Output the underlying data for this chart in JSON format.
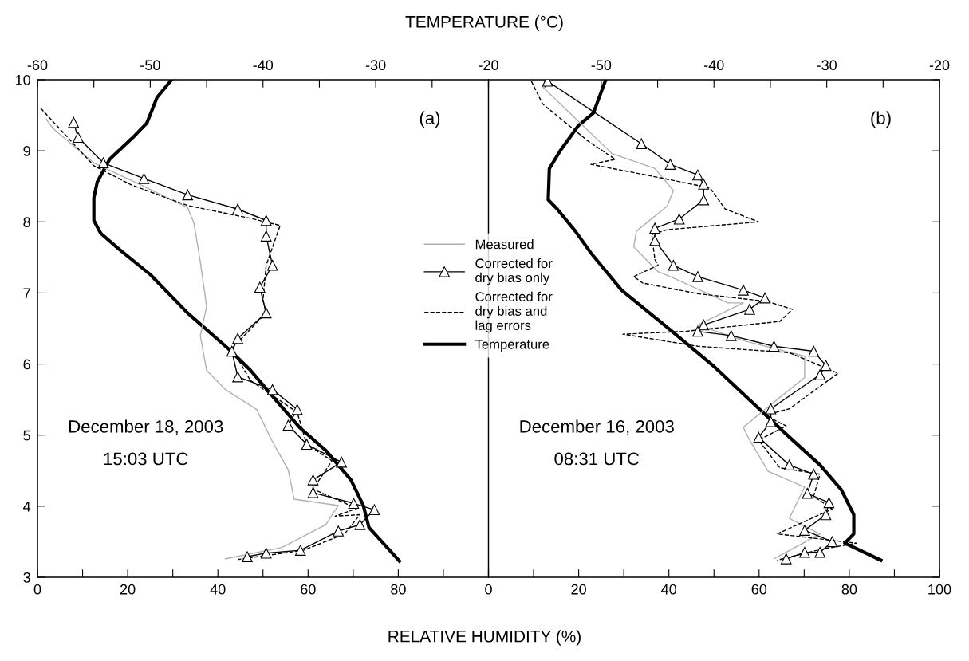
{
  "chart_data": [
    {
      "type": "line",
      "xlabel": "RELATIVE HUMIDITY (%)",
      "x2label": "TEMPERATURE (°C)",
      "legend": "center",
      "grid": false,
      "annotations": [
        "(a)",
        "December 18, 2003",
        "15:03 UTC"
      ],
      "xlim": [
        0,
        100
      ],
      "xticks": [
        0,
        {
          "value": 10,
          "label": null
        },
        20,
        {
          "value": 30,
          "label": null
        },
        40,
        {
          "value": 50,
          "label": null
        },
        60,
        {
          "value": 70,
          "label": null
        },
        80,
        {
          "value": 90,
          "label": null
        },
        {
          "value": 100,
          "label": null
        }
      ],
      "x2lim": [
        -60,
        -20
      ],
      "x2ticks": [
        -60,
        {
          "value": -55,
          "label": null
        },
        -50,
        {
          "value": -45,
          "label": null
        },
        -40,
        {
          "value": -35,
          "label": null
        },
        -30,
        {
          "value": -25,
          "label": null
        },
        -20
      ],
      "ylim": [
        3,
        10
      ],
      "yticks": [
        3,
        4,
        5,
        6,
        7,
        8,
        9,
        10
      ],
      "series": [
        {
          "name": "Measured",
          "color": "#b0b0b0",
          "marker": "none",
          "line_style": "solid",
          "x": [
            2.0,
            3.5,
            12.5,
            22.9,
            33.3,
            34.7,
            36.1,
            37.5,
            36.1,
            37.5,
            41.7,
            48.6,
            52.1,
            55.6,
            56.9,
            66.7,
            63.9,
            54.2,
            41.7
          ],
          "values": [
            9.44,
            9.31,
            8.83,
            8.52,
            8.2,
            7.98,
            7.44,
            6.81,
            6.4,
            5.91,
            5.64,
            5.36,
            4.91,
            4.51,
            4.1,
            4.01,
            3.74,
            3.42,
            3.26
          ]
        },
        {
          "name": "Corrected for\ndry bias only",
          "color": "#000000",
          "marker": "triangle",
          "line_style": "solid",
          "x": [
            8.0,
            9.0,
            14.6,
            23.6,
            33.3,
            44.4,
            50.7,
            50.7,
            52.1,
            49.3,
            50.7,
            44.4,
            43.1,
            44.4,
            52.1,
            57.6,
            55.6,
            59.7,
            67.4,
            61.1,
            61.1,
            70.1,
            74.7,
            71.5,
            66.7,
            58.3,
            50.7,
            46.5
          ],
          "values": [
            9.4,
            9.19,
            8.83,
            8.61,
            8.38,
            8.18,
            8.02,
            7.8,
            7.39,
            7.08,
            6.72,
            6.36,
            6.18,
            5.82,
            5.64,
            5.36,
            5.14,
            4.87,
            4.62,
            4.37,
            4.19,
            4.04,
            3.95,
            3.74,
            3.65,
            3.38,
            3.34,
            3.29
          ]
        },
        {
          "name": "Corrected for\ndry bias and\nlag errors",
          "color": "#000000",
          "marker": "none",
          "line_style": "dashed",
          "x": [
            0.7,
            12.5,
            20.8,
            33.3,
            47.2,
            53.8,
            50.7,
            50.0,
            50.7,
            43.1,
            47.2,
            57.6,
            59.7,
            65.3,
            61.1,
            70.8,
            66.0,
            71.5,
            68.1,
            59.0,
            44.4
          ],
          "values": [
            9.6,
            8.79,
            8.52,
            8.23,
            8.05,
            7.95,
            7.39,
            6.9,
            6.72,
            6.22,
            5.77,
            5.32,
            4.87,
            4.64,
            4.24,
            3.97,
            3.86,
            3.88,
            3.61,
            3.38,
            3.25
          ]
        },
        {
          "name": "Temperature",
          "color": "#000000",
          "marker": "none",
          "line_style": "solid",
          "axis": "x2",
          "x": [
            -48.1,
            -49.4,
            -50.3,
            -51.4,
            -53.6,
            -54.7,
            -55.0,
            -55.0,
            -54.4,
            -52.8,
            -50.0,
            -46.7,
            -43.1,
            -41.1,
            -38.9,
            -36.7,
            -34.4,
            -32.2,
            -31.1,
            -30.6,
            -27.9
          ],
          "values": [
            10.0,
            9.75,
            9.39,
            9.21,
            8.88,
            8.56,
            8.34,
            8.02,
            7.84,
            7.62,
            7.26,
            6.72,
            6.22,
            5.91,
            5.5,
            5.1,
            4.78,
            4.37,
            4.01,
            3.7,
            3.23
          ]
        }
      ]
    },
    {
      "type": "line",
      "grid": false,
      "tick_labels": "x",
      "annotations": [
        "(b)",
        "December 16, 2003",
        "08:31 UTC"
      ],
      "xlim": [
        0,
        100
      ],
      "xticks": [
        0,
        {
          "value": 10,
          "label": null
        },
        20,
        {
          "value": 30,
          "label": null
        },
        40,
        {
          "value": 50,
          "label": null
        },
        60,
        {
          "value": 70,
          "label": null
        },
        80,
        {
          "value": 90,
          "label": null
        },
        100
      ],
      "x2lim": [
        -60,
        -20
      ],
      "x2ticks": [
        {
          "value": -60,
          "label": null
        },
        {
          "value": -55,
          "label": null
        },
        -50,
        {
          "value": -45,
          "label": null
        },
        -40,
        {
          "value": -35,
          "label": null
        },
        -30,
        {
          "value": -25,
          "label": null
        },
        -20
      ],
      "ylim": [
        3,
        10
      ],
      "yticks": [
        3,
        4,
        5,
        6,
        7,
        8,
        9,
        10
      ],
      "series": [
        {
          "color": "#b0b0b0",
          "marker": "none",
          "line_style": "solid",
          "x": [
            12.0,
            27.4,
            36.9,
            41.0,
            39.6,
            32.8,
            32.2,
            37.6,
            41.0,
            53.1,
            56.5,
            46.4,
            56.5,
            70.1,
            70.1,
            64.0,
            56.5,
            57.9,
            62.0,
            70.1,
            66.7,
            73.5,
            63.3
          ],
          "values": [
            9.9,
            8.96,
            8.75,
            8.44,
            8.22,
            7.87,
            7.65,
            7.3,
            7.21,
            6.86,
            6.86,
            6.55,
            6.33,
            6.11,
            5.81,
            5.5,
            5.11,
            4.93,
            4.49,
            4.27,
            3.83,
            3.61,
            3.26
          ]
        },
        {
          "color": "#000000",
          "marker": "triangle",
          "line_style": "solid",
          "x": [
            13.1,
            33.9,
            40.3,
            46.4,
            47.7,
            47.7,
            42.3,
            36.9,
            36.9,
            41.0,
            46.4,
            56.5,
            61.3,
            57.9,
            47.7,
            46.4,
            53.8,
            63.3,
            72.1,
            74.8,
            73.5,
            62.6,
            62.6,
            59.9,
            66.7,
            72.1,
            70.7,
            75.5,
            74.8,
            70.1,
            76.2,
            73.5,
            70.1,
            66.0
          ],
          "values": [
            9.98,
            9.1,
            8.81,
            8.66,
            8.53,
            8.31,
            8.04,
            7.91,
            7.74,
            7.39,
            7.23,
            7.04,
            6.93,
            6.77,
            6.55,
            6.46,
            6.4,
            6.25,
            6.18,
            5.98,
            5.85,
            5.37,
            5.19,
            4.97,
            4.58,
            4.45,
            4.18,
            4.05,
            3.88,
            3.66,
            3.5,
            3.35,
            3.35,
            3.26
          ]
        },
        {
          "color": "#000000",
          "marker": "none",
          "line_style": "dashed",
          "x": [
            9.5,
            12.0,
            22.0,
            28.1,
            22.7,
            34.9,
            49.1,
            52.5,
            59.9,
            39.6,
            36.2,
            36.9,
            37.6,
            32.2,
            34.2,
            46.4,
            61.9,
            67.4,
            64.6,
            43.7,
            29.8,
            46.4,
            66.7,
            77.5,
            66.7,
            61.3,
            66.0,
            59.9,
            64.6,
            73.5,
            72.1,
            76.2,
            64.0,
            81.6,
            73.5,
            64.0
          ],
          "values": [
            9.98,
            9.66,
            9.14,
            8.88,
            8.81,
            8.66,
            8.48,
            8.18,
            8.0,
            7.89,
            7.82,
            7.47,
            7.39,
            7.23,
            7.14,
            6.99,
            6.88,
            6.77,
            6.6,
            6.46,
            6.42,
            6.25,
            6.16,
            5.87,
            5.37,
            5.28,
            5.13,
            4.93,
            4.54,
            4.45,
            4.14,
            3.96,
            3.61,
            3.48,
            3.39,
            3.24
          ]
        },
        {
          "color": "#000000",
          "marker": "none",
          "line_style": "solid",
          "axis": "x2",
          "x": [
            -49.6,
            -50.7,
            -52.0,
            -53.6,
            -54.6,
            -54.7,
            -53.9,
            -52.3,
            -50.9,
            -48.2,
            -44.1,
            -40.1,
            -36.0,
            -33.3,
            -30.6,
            -28.7,
            -27.6,
            -27.6,
            -28.4,
            -25.2
          ],
          "values": [
            10.0,
            9.53,
            9.36,
            9.01,
            8.75,
            8.31,
            8.18,
            7.87,
            7.56,
            7.04,
            6.51,
            5.98,
            5.37,
            4.97,
            4.58,
            4.23,
            3.88,
            3.61,
            3.48,
            3.24
          ]
        }
      ]
    }
  ]
}
